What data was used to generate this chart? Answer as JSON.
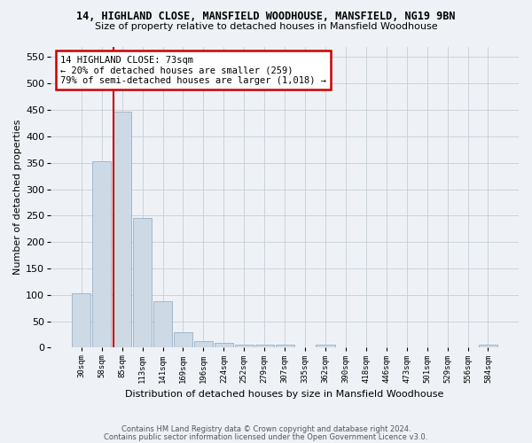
{
  "title_line1": "14, HIGHLAND CLOSE, MANSFIELD WOODHOUSE, MANSFIELD, NG19 9BN",
  "title_line2": "Size of property relative to detached houses in Mansfield Woodhouse",
  "xlabel": "Distribution of detached houses by size in Mansfield Woodhouse",
  "ylabel": "Number of detached properties",
  "footer_line1": "Contains HM Land Registry data © Crown copyright and database right 2024.",
  "footer_line2": "Contains public sector information licensed under the Open Government Licence v3.0.",
  "bin_labels": [
    "30sqm",
    "58sqm",
    "85sqm",
    "113sqm",
    "141sqm",
    "169sqm",
    "196sqm",
    "224sqm",
    "252sqm",
    "279sqm",
    "307sqm",
    "335sqm",
    "362sqm",
    "390sqm",
    "418sqm",
    "446sqm",
    "473sqm",
    "501sqm",
    "529sqm",
    "556sqm",
    "584sqm"
  ],
  "bar_values": [
    103,
    353,
    447,
    246,
    88,
    30,
    13,
    9,
    5,
    5,
    5,
    0,
    5,
    0,
    0,
    0,
    0,
    0,
    0,
    0,
    5
  ],
  "bar_color": "#cdd9e5",
  "bar_edge_color": "#9ab0c4",
  "ylim": [
    0,
    570
  ],
  "yticks": [
    0,
    50,
    100,
    150,
    200,
    250,
    300,
    350,
    400,
    450,
    500,
    550
  ],
  "vline_x_idx": 1.57,
  "vline_color": "#cc0000",
  "annotation_text": "14 HIGHLAND CLOSE: 73sqm\n← 20% of detached houses are smaller (259)\n79% of semi-detached houses are larger (1,018) →",
  "annotation_box_color": "#ffffff",
  "annotation_box_edge": "#cc0000",
  "bg_color": "#eef2f6",
  "grid_color": "#c5cdd8",
  "title1_fontsize": 8.5,
  "title2_fontsize": 8.0,
  "annot_fontsize": 7.5
}
